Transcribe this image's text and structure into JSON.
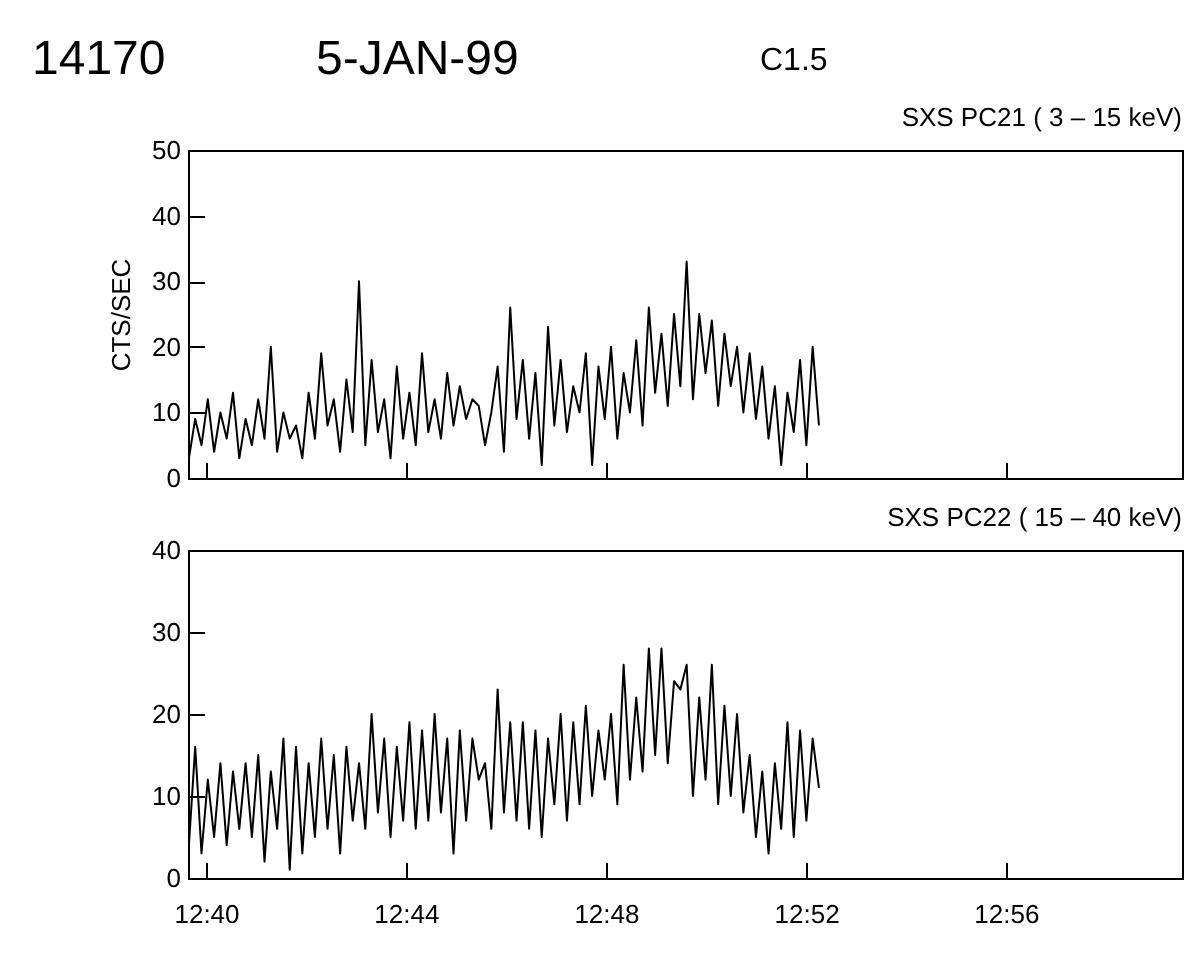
{
  "chart_data": [
    {
      "type": "line",
      "title": "14170",
      "annotations": [
        "5-JAN-99",
        "C1.5"
      ],
      "subtitle": "SXS PC21  (  3 – 15 keV)",
      "ylabel": "CTS/SEC",
      "tick_labels": "y",
      "grid": false,
      "xlim": [
        12.6607,
        12.992
      ],
      "xticks": [
        {
          "value": 12.6667,
          "label": null
        },
        {
          "value": 12.7333,
          "label": null
        },
        {
          "value": 12.8,
          "label": null
        },
        {
          "value": 12.8667,
          "label": null
        },
        {
          "value": 12.9333,
          "label": null
        }
      ],
      "ylim": [
        0,
        50
      ],
      "yticks": [
        0,
        10,
        20,
        30,
        40,
        50
      ],
      "x": [
        12.661,
        12.6631,
        12.6652,
        12.6673,
        12.6694,
        12.6715,
        12.6736,
        12.6757,
        12.6778,
        12.6799,
        12.682,
        12.6841,
        12.6862,
        12.6883,
        12.6904,
        12.6925,
        12.6946,
        12.6967,
        12.6988,
        12.7009,
        12.703,
        12.7051,
        12.7072,
        12.7093,
        12.7114,
        12.7135,
        12.7156,
        12.7177,
        12.7198,
        12.7219,
        12.724,
        12.7261,
        12.7282,
        12.7303,
        12.7324,
        12.7345,
        12.7366,
        12.7387,
        12.7408,
        12.7429,
        12.745,
        12.7471,
        12.7492,
        12.7513,
        12.7534,
        12.7555,
        12.7576,
        12.7597,
        12.7618,
        12.7639,
        12.766,
        12.7681,
        12.7702,
        12.7723,
        12.7744,
        12.7765,
        12.7786,
        12.7807,
        12.7828,
        12.7849,
        12.787,
        12.7891,
        12.7912,
        12.7933,
        12.7954,
        12.7975,
        12.7996,
        12.8017,
        12.8038,
        12.8059,
        12.808,
        12.8101,
        12.8122,
        12.8143,
        12.8164,
        12.8185,
        12.8206,
        12.8227,
        12.8248,
        12.8269,
        12.829,
        12.8311,
        12.8332,
        12.8353,
        12.8374,
        12.8395,
        12.8416,
        12.8437,
        12.8458,
        12.8479,
        12.85,
        12.8521,
        12.8542,
        12.8563,
        12.8584,
        12.8605,
        12.8626,
        12.8647,
        12.8668,
        12.8689,
        12.871
      ],
      "series": [
        {
          "color": "#000000",
          "values": [
            3,
            9,
            5,
            12,
            4,
            10,
            6,
            13,
            3,
            9,
            5,
            12,
            6,
            20,
            4,
            10,
            6,
            8,
            3,
            13,
            6,
            19,
            8,
            12,
            4,
            15,
            7,
            30,
            5,
            18,
            7,
            12,
            3,
            17,
            6,
            13,
            5,
            19,
            7,
            12,
            6,
            16,
            8,
            14,
            9,
            12,
            11,
            5,
            10,
            17,
            4,
            26,
            9,
            18,
            6,
            16,
            2,
            23,
            8,
            18,
            7,
            14,
            10,
            19,
            2,
            17,
            9,
            20,
            6,
            16,
            10,
            21,
            8,
            26,
            13,
            22,
            11,
            25,
            14,
            33,
            12,
            25,
            16,
            24,
            11,
            22,
            14,
            20,
            10,
            19,
            9,
            17,
            6,
            14,
            2,
            13,
            7,
            18,
            5,
            20,
            8
          ]
        }
      ]
    },
    {
      "type": "line",
      "subtitle": "SXS PC22  ( 15 – 40 keV)",
      "grid": false,
      "xlim": [
        12.6607,
        12.992
      ],
      "xticks": [
        {
          "value": 12.6667,
          "label": "12:40"
        },
        {
          "value": 12.7333,
          "label": "12:44"
        },
        {
          "value": 12.8,
          "label": "12:48"
        },
        {
          "value": 12.8667,
          "label": "12:52"
        },
        {
          "value": 12.9333,
          "label": "12:56"
        }
      ],
      "ylim": [
        0,
        40
      ],
      "yticks": [
        0,
        10,
        20,
        30,
        40
      ],
      "x": [
        12.661,
        12.6631,
        12.6652,
        12.6673,
        12.6694,
        12.6715,
        12.6736,
        12.6757,
        12.6778,
        12.6799,
        12.682,
        12.6841,
        12.6862,
        12.6883,
        12.6904,
        12.6925,
        12.6946,
        12.6967,
        12.6988,
        12.7009,
        12.703,
        12.7051,
        12.7072,
        12.7093,
        12.7114,
        12.7135,
        12.7156,
        12.7177,
        12.7198,
        12.7219,
        12.724,
        12.7261,
        12.7282,
        12.7303,
        12.7324,
        12.7345,
        12.7366,
        12.7387,
        12.7408,
        12.7429,
        12.745,
        12.7471,
        12.7492,
        12.7513,
        12.7534,
        12.7555,
        12.7576,
        12.7597,
        12.7618,
        12.7639,
        12.766,
        12.7681,
        12.7702,
        12.7723,
        12.7744,
        12.7765,
        12.7786,
        12.7807,
        12.7828,
        12.7849,
        12.787,
        12.7891,
        12.7912,
        12.7933,
        12.7954,
        12.7975,
        12.7996,
        12.8017,
        12.8038,
        12.8059,
        12.808,
        12.8101,
        12.8122,
        12.8143,
        12.8164,
        12.8185,
        12.8206,
        12.8227,
        12.8248,
        12.8269,
        12.829,
        12.8311,
        12.8332,
        12.8353,
        12.8374,
        12.8395,
        12.8416,
        12.8437,
        12.8458,
        12.8479,
        12.85,
        12.8521,
        12.8542,
        12.8563,
        12.8584,
        12.8605,
        12.8626,
        12.8647,
        12.8668,
        12.8689,
        12.871
      ],
      "series": [
        {
          "color": "#000000",
          "values": [
            4,
            16,
            3,
            12,
            5,
            14,
            4,
            13,
            6,
            14,
            5,
            15,
            2,
            13,
            6,
            17,
            1,
            16,
            3,
            14,
            5,
            17,
            6,
            15,
            3,
            16,
            7,
            14,
            6,
            20,
            8,
            17,
            5,
            16,
            7,
            19,
            6,
            18,
            7,
            20,
            8,
            17,
            3,
            18,
            7,
            17,
            12,
            14,
            6,
            23,
            8,
            19,
            7,
            19,
            6,
            18,
            5,
            17,
            9,
            20,
            7,
            19,
            9,
            21,
            10,
            18,
            12,
            20,
            9,
            26,
            12,
            22,
            13,
            28,
            15,
            28,
            14,
            24,
            23,
            26,
            10,
            22,
            12,
            26,
            9,
            21,
            10,
            20,
            8,
            15,
            5,
            13,
            3,
            14,
            6,
            19,
            5,
            18,
            7,
            17,
            11
          ]
        }
      ]
    }
  ]
}
